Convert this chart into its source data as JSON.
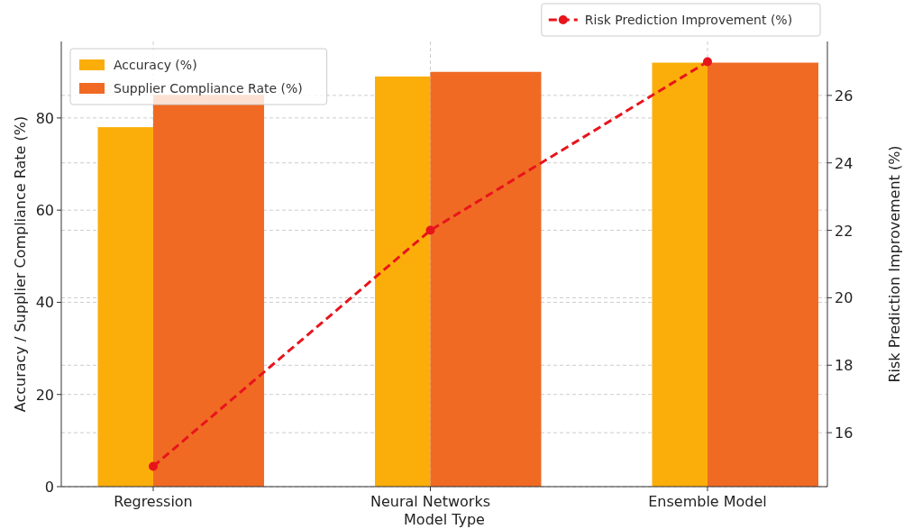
{
  "chart_data": {
    "type": "bar",
    "xlabel": "Model Type",
    "ylabel": "Accuracy / Supplier Compliance Rate (%)",
    "y2label": "Risk Prediction Improvement (%)",
    "categories": [
      "Regression",
      "Neural Networks",
      "Ensemble Model"
    ],
    "series": [
      {
        "name": "Accuracy (%)",
        "color": "#fbae0a",
        "values": [
          78,
          89,
          92
        ]
      },
      {
        "name": "Supplier Compliance Rate (%)",
        "color": "#f06a24",
        "values": [
          85,
          90,
          92
        ]
      },
      {
        "name": "Risk Prediction Improvement (%)",
        "type": "line",
        "axis": "y2",
        "color": "#e8141c",
        "values": [
          15,
          22,
          27
        ],
        "marker": "circle",
        "line_style": "dashed"
      }
    ],
    "ylim": [
      0,
      96.6
    ],
    "yticks": [
      0,
      20,
      40,
      60,
      80
    ],
    "y2lim": [
      14.4,
      27.6
    ],
    "y2ticks": [
      16,
      18,
      20,
      22,
      24,
      26
    ],
    "grid": true,
    "legend": "top"
  }
}
